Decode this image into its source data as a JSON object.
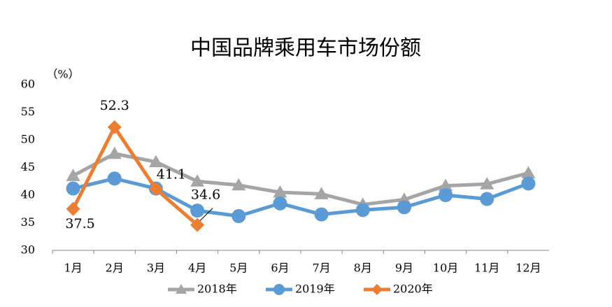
{
  "chart_data": {
    "type": "line",
    "title": "中国品牌乘用车市场份额",
    "y_label": "（%）",
    "categories": [
      "1月",
      "2月",
      "3月",
      "4月",
      "5月",
      "6月",
      "7月",
      "8月",
      "9月",
      "10月",
      "11月",
      "12月"
    ],
    "series": [
      {
        "name": "2018年",
        "color": "#a5a5a5",
        "marker": "triangle",
        "values": [
          43.5,
          47.5,
          46,
          42.5,
          41.8,
          40.5,
          40.2,
          38.3,
          39.2,
          41.7,
          42,
          44
        ]
      },
      {
        "name": "2019年",
        "color": "#5b9bd5",
        "marker": "circle",
        "values": [
          41.2,
          43,
          41.2,
          37.2,
          36.2,
          38.5,
          36.5,
          37.3,
          37.8,
          40,
          39.3,
          42.1
        ]
      },
      {
        "name": "2020年",
        "color": "#ed7d31",
        "marker": "diamond",
        "values": [
          37.5,
          52.3,
          41.1,
          34.6,
          null,
          null,
          null,
          null,
          null,
          null,
          null,
          null
        ],
        "data_labels": true
      }
    ],
    "ylim": [
      30,
      60
    ],
    "yticks": [
      30,
      35,
      40,
      45,
      50,
      55,
      60
    ],
    "grid": false,
    "legend": "bottom"
  }
}
